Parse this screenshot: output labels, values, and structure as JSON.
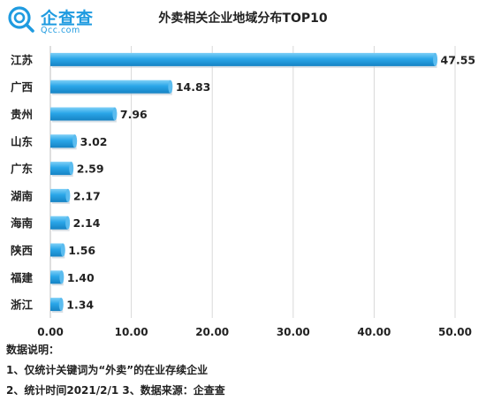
{
  "logo": {
    "name": "企查查",
    "domain": "Qcc.com",
    "icon": "qcc-logo-icon",
    "color": "#1f9be0"
  },
  "chart_data": {
    "type": "bar",
    "orientation": "horizontal",
    "title": "外卖相关企业地域分布TOP10",
    "categories": [
      "江苏",
      "广西",
      "贵州",
      "山东",
      "广东",
      "湖南",
      "海南",
      "陕西",
      "福建",
      "浙江"
    ],
    "values": [
      47.55,
      14.83,
      7.96,
      3.02,
      2.59,
      2.17,
      2.14,
      1.56,
      1.4,
      1.34
    ],
    "value_labels": [
      "47.55",
      "14.83",
      "7.96",
      "3.02",
      "2.59",
      "2.17",
      "2.14",
      "1.56",
      "1.40",
      "1.34"
    ],
    "xlim": [
      0,
      50
    ],
    "x_ticks": [
      "0.00",
      "10.00",
      "20.00",
      "30.00",
      "40.00",
      "50.00"
    ],
    "grid": "vertical",
    "bar_color": "#1e9de3",
    "bar_highlight": "#6cc4f2",
    "legend": "none"
  },
  "notes": {
    "heading": "数据说明：",
    "line1": "1、仅统计关键词为“外卖”的在业存续企业",
    "line2": "2、统计时间2021/2/1   3、数据来源：企查查"
  }
}
